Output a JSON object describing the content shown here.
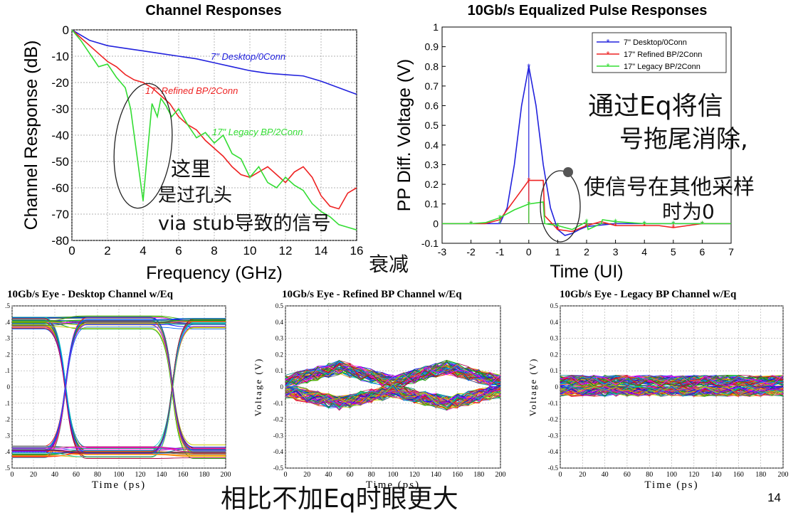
{
  "chart_data": [
    {
      "type": "line",
      "title": "Channel Responses",
      "xlabel": "Frequency (GHz)",
      "ylabel": "Channel Response (dB)",
      "xlim": [
        0,
        16
      ],
      "ylim": [
        -80,
        0
      ],
      "xticks": [
        "0",
        "2",
        "4",
        "6",
        "8",
        "10",
        "12",
        "14",
        "16"
      ],
      "yticks": [
        "0",
        "-10",
        "-20",
        "-30",
        "-40",
        "-50",
        "-60",
        "-70",
        "-80"
      ],
      "grid": true,
      "series": [
        {
          "name": "7\" Desktop/0Conn",
          "color": "#2222dd",
          "x": [
            0,
            1,
            2,
            3,
            4,
            5,
            6,
            7,
            8,
            9,
            10,
            11,
            12,
            13,
            14,
            15,
            16
          ],
          "y": [
            0,
            -4,
            -6,
            -7,
            -8,
            -9,
            -10,
            -11,
            -12.5,
            -14,
            -15.5,
            -16.5,
            -17,
            -17.5,
            -19.5,
            -22,
            -24.5
          ]
        },
        {
          "name": "17\" Refined BP/2Conn",
          "color": "#ee2222",
          "x": [
            0,
            0.5,
            1,
            1.5,
            2,
            2.5,
            3,
            3.5,
            4,
            4.5,
            5,
            5.5,
            6,
            6.5,
            7,
            7.5,
            8,
            8.5,
            9,
            9.5,
            10,
            10.5,
            11,
            11.5,
            12,
            12.5,
            13,
            13.5,
            14,
            14.5,
            15,
            15.5,
            16
          ],
          "y": [
            0,
            -3,
            -6,
            -9,
            -12,
            -14,
            -17,
            -19,
            -20,
            -22,
            -25,
            -28,
            -33,
            -36,
            -38,
            -42,
            -45,
            -48,
            -52,
            -55,
            -56,
            -54,
            -52,
            -55,
            -58,
            -54,
            -52,
            -56,
            -63,
            -67,
            -68,
            -62,
            -60
          ]
        },
        {
          "name": "17\" Legacy BP/2Conn",
          "color": "#33dd33",
          "x": [
            0,
            0.5,
            1,
            1.5,
            2,
            2.5,
            3,
            3.3,
            3.6,
            3.9,
            4.0,
            4.2,
            4.5,
            4.8,
            5,
            5.3,
            5.6,
            6,
            6.5,
            7,
            7.5,
            8,
            8.5,
            9,
            9.5,
            10,
            10.5,
            11,
            11.5,
            12,
            12.5,
            13,
            13.5,
            14,
            14.5,
            15,
            15.5,
            16
          ],
          "y": [
            0,
            -4,
            -9,
            -14,
            -13,
            -18,
            -22,
            -30,
            -45,
            -60,
            -65,
            -50,
            -28,
            -33,
            -26,
            -29,
            -33,
            -30,
            -36,
            -41,
            -39,
            -43,
            -40,
            -47,
            -49,
            -56,
            -52,
            -58,
            -60,
            -56,
            -59,
            -61,
            -66,
            -69,
            -71,
            -74,
            -75,
            -76
          ]
        }
      ],
      "annotations": [
        "7\" Desktop/0Conn",
        "17\" Refined BP/2Conn",
        "17\" Legacy BP/2Conn"
      ]
    },
    {
      "type": "line",
      "title": "10Gb/s Equalized Pulse Responses",
      "xlabel": "Time (UI)",
      "ylabel": "PP Diff. Voltage (V)",
      "xlim": [
        -3,
        7
      ],
      "ylim": [
        -0.1,
        1
      ],
      "xticks": [
        "-3",
        "-2",
        "-1",
        "0",
        "1",
        "2",
        "3",
        "4",
        "5",
        "6",
        "7"
      ],
      "yticks": [
        "1",
        "0.9",
        "0.8",
        "0.7",
        "0.6",
        "0.5",
        "0.4",
        "0.3",
        "0.2",
        "0.1",
        "0",
        "-0.1"
      ],
      "legend": "top-right",
      "series": [
        {
          "name": "7\" Desktop/0Conn",
          "color": "#2222dd",
          "x": [
            -3,
            -2,
            -1.5,
            -1,
            -0.75,
            -0.5,
            -0.25,
            0,
            0.25,
            0.5,
            0.75,
            1,
            1.25,
            1.5,
            1.75,
            2,
            3,
            4,
            5,
            6,
            7
          ],
          "y": [
            0,
            0,
            0,
            0,
            0.08,
            0.3,
            0.6,
            0.8,
            0.6,
            0.3,
            0.08,
            -0.03,
            -0.06,
            -0.05,
            -0.03,
            -0.015,
            0,
            0,
            0,
            0,
            0
          ]
        },
        {
          "name": "17\" Refined BP/2Conn",
          "color": "#ee2222",
          "x": [
            -3,
            -2,
            -1.5,
            -1,
            -0.5,
            0,
            0.5,
            0.55,
            1,
            1.5,
            2,
            2.5,
            3,
            3.5,
            4,
            4.5,
            5,
            5.5,
            6,
            7
          ],
          "y": [
            0,
            0,
            0,
            0.02,
            0.12,
            0.22,
            0.22,
            0.04,
            -0.03,
            -0.04,
            -0.01,
            0.01,
            -0.01,
            -0.01,
            -0.01,
            -0.01,
            -0.02,
            -0.01,
            0,
            0
          ]
        },
        {
          "name": "17\" Legacy BP/2Conn",
          "color": "#33dd33",
          "x": [
            -3,
            -2,
            -1.5,
            -1,
            -0.5,
            0,
            0.5,
            0.55,
            1,
            1.5,
            2,
            2.05,
            2.5,
            2.55,
            3,
            4,
            5,
            6,
            7
          ],
          "y": [
            0,
            0,
            0.005,
            0.03,
            0.07,
            0.1,
            0.11,
            0.0,
            -0.01,
            -0.03,
            0.01,
            -0.03,
            0.0,
            0.02,
            0.01,
            0,
            0,
            0,
            0
          ]
        }
      ]
    },
    {
      "type": "eye",
      "title": "10Gb/s Eye - Desktop Channel w/Eq",
      "xlabel": "Time (ps)",
      "ylabel": "",
      "xlim": [
        0,
        200
      ],
      "ylim": [
        -0.5,
        0.5
      ],
      "xticks": [
        "0",
        "20",
        "40",
        "60",
        "80",
        "100",
        "120",
        "140",
        "160",
        "180",
        "200"
      ],
      "yticks": [
        ".5",
        ".4",
        ".3",
        ".2",
        ".1",
        "0",
        ".1",
        ".2",
        ".3",
        ".4",
        ".5"
      ],
      "levels": [
        -0.4,
        0.4
      ],
      "crossings": [
        50,
        150
      ]
    },
    {
      "type": "eye",
      "title": "10Gb/s Eye - Refined BP Channel w/Eq",
      "xlabel": "Time (ps)",
      "ylabel": "Voltage (V)",
      "xlim": [
        0,
        200
      ],
      "ylim": [
        -0.5,
        0.5
      ],
      "xticks": [
        "0",
        "20",
        "40",
        "60",
        "80",
        "100",
        "120",
        "140",
        "160",
        "180",
        "200"
      ],
      "yticks": [
        "0.5",
        "0.4",
        "0.3",
        "0.2",
        "0.1",
        "0",
        "-0.1",
        "-0.2",
        "-0.3",
        "-0.4",
        "-0.5"
      ],
      "levels": [
        -0.1,
        0.12
      ]
    },
    {
      "type": "eye",
      "title": "10Gb/s Eye - Legacy BP Channel w/Eq",
      "xlabel": "Time (ps)",
      "ylabel": "Voltage (V)",
      "xlim": [
        0,
        200
      ],
      "ylim": [
        -0.5,
        0.5
      ],
      "xticks": [
        "0",
        "20",
        "40",
        "60",
        "80",
        "100",
        "120",
        "140",
        "160",
        "180",
        "200"
      ],
      "yticks": [
        "0.5",
        "0.4",
        "0.3",
        "0.2",
        "0.1",
        "0",
        "-0.1",
        "-0.2",
        "-0.3",
        "-0.4",
        "-0.5"
      ],
      "levels": [
        -0.05,
        0.08
      ]
    }
  ],
  "handwriting": {
    "note1_line1": "这里",
    "note1_line2": "是过孔头",
    "note1_line3": "via stub导致的信号",
    "note1_line4": "衰减",
    "note2_line1": "通过Eq将信",
    "note2_line2": "号拖尾消除,",
    "note3_line1": "使信号在其他采样",
    "note3_line2": "时为0",
    "note4": "相比不加Eq时眼更大"
  },
  "page_number": "14"
}
